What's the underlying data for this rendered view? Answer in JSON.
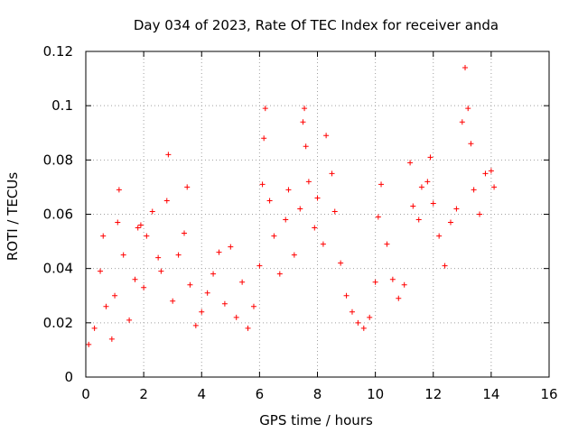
{
  "chart_data": {
    "type": "scatter",
    "title": "Day 034 of 2023, Rate Of TEC Index for receiver anda",
    "xlabel": "GPS time / hours",
    "ylabel": "ROTI / TECUs",
    "xlim": [
      0,
      16
    ],
    "ylim": [
      0,
      0.12
    ],
    "x_ticks": [
      0,
      2,
      4,
      6,
      8,
      10,
      12,
      14,
      16
    ],
    "x_tick_labels": [
      "0",
      "2",
      "4",
      "6",
      "8",
      "10",
      "12",
      "14",
      "16"
    ],
    "y_ticks": [
      0,
      0.02,
      0.04,
      0.06,
      0.08,
      0.1,
      0.12
    ],
    "y_tick_labels": [
      "0",
      "0.02",
      "0.04",
      "0.06",
      "0.08",
      "0.1",
      "0.12"
    ],
    "grid": true,
    "marker": "+",
    "series": [
      {
        "name": "ROTI",
        "color": "#ff0000",
        "points": [
          [
            0.1,
            0.012
          ],
          [
            0.3,
            0.018
          ],
          [
            0.5,
            0.039
          ],
          [
            0.6,
            0.052
          ],
          [
            0.7,
            0.026
          ],
          [
            0.9,
            0.014
          ],
          [
            1.0,
            0.03
          ],
          [
            1.1,
            0.057
          ],
          [
            1.15,
            0.069
          ],
          [
            1.3,
            0.045
          ],
          [
            1.5,
            0.021
          ],
          [
            1.7,
            0.036
          ],
          [
            1.8,
            0.055
          ],
          [
            1.9,
            0.056
          ],
          [
            2.0,
            0.033
          ],
          [
            2.1,
            0.052
          ],
          [
            2.3,
            0.061
          ],
          [
            2.5,
            0.044
          ],
          [
            2.6,
            0.039
          ],
          [
            2.8,
            0.065
          ],
          [
            2.85,
            0.082
          ],
          [
            3.0,
            0.028
          ],
          [
            3.2,
            0.045
          ],
          [
            3.4,
            0.053
          ],
          [
            3.5,
            0.07
          ],
          [
            3.6,
            0.034
          ],
          [
            3.8,
            0.019
          ],
          [
            4.0,
            0.024
          ],
          [
            4.2,
            0.031
          ],
          [
            4.4,
            0.038
          ],
          [
            4.6,
            0.046
          ],
          [
            4.8,
            0.027
          ],
          [
            5.0,
            0.048
          ],
          [
            5.2,
            0.022
          ],
          [
            5.4,
            0.035
          ],
          [
            5.6,
            0.018
          ],
          [
            5.8,
            0.026
          ],
          [
            6.0,
            0.041
          ],
          [
            6.1,
            0.071
          ],
          [
            6.15,
            0.088
          ],
          [
            6.2,
            0.099
          ],
          [
            6.35,
            0.065
          ],
          [
            6.5,
            0.052
          ],
          [
            6.7,
            0.038
          ],
          [
            6.9,
            0.058
          ],
          [
            7.0,
            0.069
          ],
          [
            7.2,
            0.045
          ],
          [
            7.4,
            0.062
          ],
          [
            7.5,
            0.094
          ],
          [
            7.55,
            0.099
          ],
          [
            7.6,
            0.085
          ],
          [
            7.7,
            0.072
          ],
          [
            7.9,
            0.055
          ],
          [
            8.0,
            0.066
          ],
          [
            8.2,
            0.049
          ],
          [
            8.3,
            0.089
          ],
          [
            8.5,
            0.075
          ],
          [
            8.6,
            0.061
          ],
          [
            8.8,
            0.042
          ],
          [
            9.0,
            0.03
          ],
          [
            9.2,
            0.024
          ],
          [
            9.4,
            0.02
          ],
          [
            9.6,
            0.018
          ],
          [
            9.8,
            0.022
          ],
          [
            10.0,
            0.035
          ],
          [
            10.1,
            0.059
          ],
          [
            10.2,
            0.071
          ],
          [
            10.4,
            0.049
          ],
          [
            10.6,
            0.036
          ],
          [
            10.8,
            0.029
          ],
          [
            11.0,
            0.034
          ],
          [
            11.2,
            0.079
          ],
          [
            11.3,
            0.063
          ],
          [
            11.5,
            0.058
          ],
          [
            11.6,
            0.07
          ],
          [
            11.8,
            0.072
          ],
          [
            11.9,
            0.081
          ],
          [
            12.0,
            0.064
          ],
          [
            12.2,
            0.052
          ],
          [
            12.4,
            0.041
          ],
          [
            12.6,
            0.057
          ],
          [
            12.8,
            0.062
          ],
          [
            13.0,
            0.094
          ],
          [
            13.1,
            0.114
          ],
          [
            13.2,
            0.099
          ],
          [
            13.3,
            0.086
          ],
          [
            13.4,
            0.069
          ],
          [
            13.6,
            0.06
          ],
          [
            13.8,
            0.075
          ],
          [
            14.0,
            0.076
          ],
          [
            14.1,
            0.07
          ]
        ]
      }
    ]
  }
}
